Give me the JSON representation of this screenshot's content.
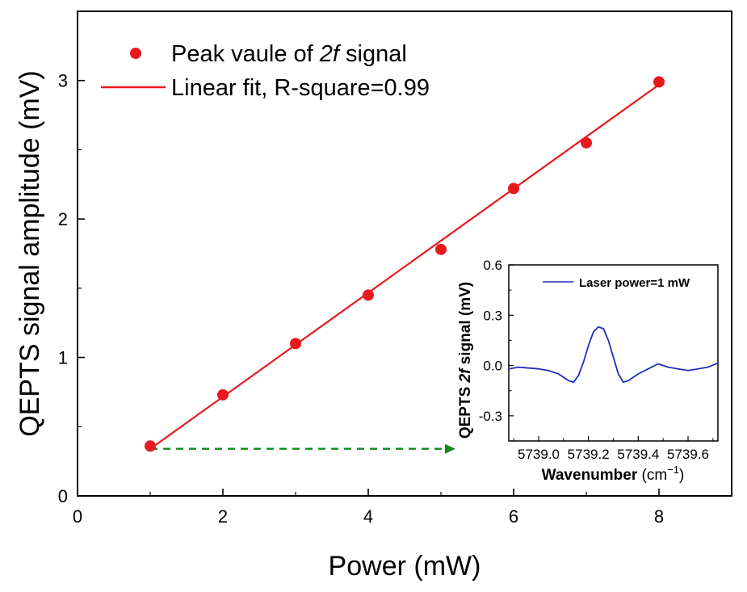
{
  "chart_data": [
    {
      "type": "scatter",
      "title": "",
      "xlabel": "Power (mW)",
      "ylabel": "QEPTS signal amplitude (mV)",
      "xlim": [
        0,
        9
      ],
      "ylim": [
        0,
        3.5
      ],
      "xticks": [
        0,
        2,
        4,
        6,
        8
      ],
      "yticks": [
        0,
        1,
        2,
        3
      ],
      "grid": false,
      "legend_position": "top-left",
      "series": [
        {
          "name": "Peak vaule of 2f signal",
          "name_prefix": "Peak vaule of ",
          "name_italic": "2f",
          "name_suffix": " signal",
          "kind": "scatter",
          "color": "#e8191c",
          "x": [
            1,
            2,
            3,
            4,
            5,
            6,
            7,
            8
          ],
          "y": [
            0.36,
            0.73,
            1.1,
            1.45,
            1.78,
            2.22,
            2.55,
            2.99
          ]
        },
        {
          "name": "Linear fit, R-square=0.99",
          "kind": "line",
          "color": "#e8191c",
          "x": [
            1,
            8
          ],
          "y": [
            0.34,
            2.97
          ]
        }
      ],
      "annotations": [
        {
          "kind": "dashed-arrow",
          "color": "#0d8a1a",
          "from": [
            1.0,
            0.34
          ],
          "to": [
            5.2,
            0.34
          ]
        }
      ]
    },
    {
      "type": "line",
      "title": "",
      "xlabel": "Wavenumber (cm⁻¹)",
      "xlabel_text": "Wavenumber ",
      "xlabel_unit_open": "(cm",
      "xlabel_unit_sup": "−1",
      "xlabel_unit_close": ")",
      "ylabel": "QEPTS 2f signal (mV)",
      "ylabel_prefix": "QEPTS ",
      "ylabel_italic": "2f",
      "ylabel_suffix": " signal (mV)",
      "xlim": [
        5738.88,
        5739.72
      ],
      "ylim": [
        -0.45,
        0.6
      ],
      "xticks": [
        5739.0,
        5739.2,
        5739.4,
        5739.6
      ],
      "xtick_labels": [
        "5739.0",
        "5739.2",
        "5739.4",
        "5739.6"
      ],
      "yticks": [
        -0.3,
        0.0,
        0.3,
        0.6
      ],
      "ytick_labels": [
        "-0.3",
        "0.0",
        "0.3",
        "0.6"
      ],
      "grid": false,
      "legend_position": "top-right",
      "series": [
        {
          "name": "Laser power=1 mW",
          "color": "#1f2fb8",
          "x": [
            5738.88,
            5738.92,
            5738.96,
            5739.0,
            5739.04,
            5739.08,
            5739.1,
            5739.12,
            5739.14,
            5739.16,
            5739.18,
            5739.2,
            5739.22,
            5739.24,
            5739.26,
            5739.28,
            5739.3,
            5739.32,
            5739.34,
            5739.36,
            5739.38,
            5739.4,
            5739.44,
            5739.48,
            5739.52,
            5739.56,
            5739.6,
            5739.64,
            5739.68,
            5739.72
          ],
          "y": [
            -0.02,
            -0.01,
            -0.015,
            -0.02,
            -0.03,
            -0.05,
            -0.07,
            -0.09,
            -0.1,
            -0.06,
            0.02,
            0.12,
            0.2,
            0.23,
            0.22,
            0.15,
            0.05,
            -0.05,
            -0.1,
            -0.09,
            -0.07,
            -0.05,
            -0.02,
            0.01,
            -0.01,
            -0.02,
            -0.03,
            -0.02,
            -0.01,
            0.015
          ]
        }
      ]
    }
  ]
}
